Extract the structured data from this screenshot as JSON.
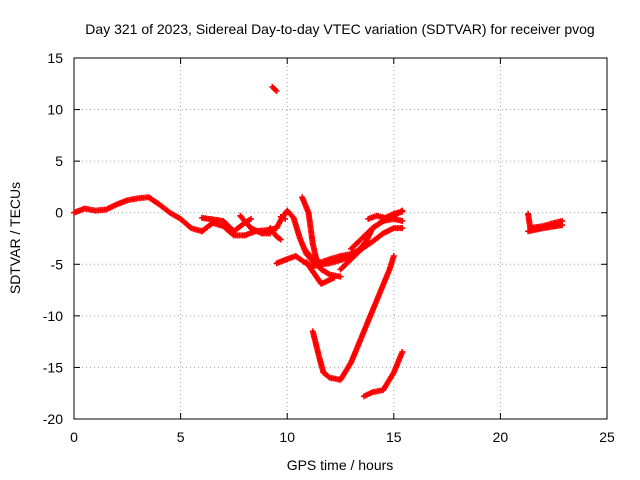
{
  "chart_data": {
    "type": "scatter",
    "title": "Day 321 of 2023, Sidereal Day-to-day VTEC variation (SDTVAR) for receiver pvog",
    "xlabel": "GPS time / hours",
    "ylabel": "SDTVAR / TECUs",
    "xlim": [
      0,
      25
    ],
    "ylim": [
      -20,
      15
    ],
    "xticks": [
      0,
      5,
      10,
      15,
      20,
      25
    ],
    "yticks": [
      -20,
      -15,
      -10,
      -5,
      0,
      5,
      10,
      15
    ],
    "grid": true,
    "legend": "none",
    "series_color": "#ff0000",
    "series": [
      {
        "name": "main-trace",
        "points": [
          [
            0.0,
            0.0
          ],
          [
            0.5,
            0.4
          ],
          [
            1.0,
            0.2
          ],
          [
            1.5,
            0.3
          ],
          [
            2.0,
            0.8
          ],
          [
            2.5,
            1.2
          ],
          [
            3.0,
            1.4
          ],
          [
            3.5,
            1.5
          ],
          [
            4.0,
            0.8
          ],
          [
            4.5,
            0.0
          ],
          [
            5.0,
            -0.6
          ],
          [
            5.5,
            -1.5
          ],
          [
            6.0,
            -1.8
          ]
        ]
      },
      {
        "name": "main-trace-b",
        "points": [
          [
            6.0,
            -1.8
          ],
          [
            6.5,
            -1.0
          ],
          [
            7.0,
            -1.3
          ],
          [
            7.5,
            -2.2
          ],
          [
            8.0,
            -2.2
          ],
          [
            8.5,
            -1.8
          ],
          [
            9.0,
            -1.7
          ],
          [
            9.5,
            -1.5
          ],
          [
            9.7,
            -0.7
          ],
          [
            10.0,
            0.2
          ],
          [
            10.3,
            -0.5
          ],
          [
            10.6,
            -2.5
          ],
          [
            10.9,
            -4.0
          ],
          [
            11.2,
            -4.7
          ],
          [
            11.6,
            -4.8
          ],
          [
            12.0,
            -4.5
          ],
          [
            12.5,
            -4.2
          ],
          [
            13.0,
            -4.0
          ],
          [
            13.5,
            -3.5
          ]
        ]
      },
      {
        "name": "trace-b",
        "points": [
          [
            6.0,
            -0.5
          ],
          [
            7.0,
            -0.8
          ],
          [
            7.5,
            -1.8
          ],
          [
            8.0,
            -1.0
          ],
          [
            8.3,
            -0.6
          ]
        ]
      },
      {
        "name": "trace-c",
        "points": [
          [
            7.8,
            -0.3
          ],
          [
            8.0,
            -0.8
          ],
          [
            8.3,
            -1.5
          ],
          [
            8.8,
            -2.0
          ],
          [
            9.2,
            -2.0
          ]
        ]
      },
      {
        "name": "trace-d",
        "points": [
          [
            9.7,
            -0.4
          ],
          [
            9.9,
            -0.6
          ]
        ]
      },
      {
        "name": "trace-e",
        "points": [
          [
            9.2,
            -1.5
          ],
          [
            9.5,
            -2.3
          ],
          [
            9.7,
            -2.6
          ]
        ]
      },
      {
        "name": "trace-f",
        "points": [
          [
            10.7,
            1.5
          ],
          [
            11.0,
            0.0
          ],
          [
            11.2,
            -3.0
          ],
          [
            11.4,
            -4.8
          ],
          [
            11.6,
            -5.5
          ]
        ]
      },
      {
        "name": "trace-g",
        "points": [
          [
            10.8,
            -3.5
          ],
          [
            11.2,
            -4.5
          ],
          [
            11.6,
            -5.5
          ],
          [
            12.0,
            -6.0
          ],
          [
            12.5,
            -6.2
          ]
        ]
      },
      {
        "name": "trace-h",
        "points": [
          [
            10.9,
            -4.8
          ],
          [
            11.3,
            -6.0
          ],
          [
            11.6,
            -6.9
          ],
          [
            11.9,
            -6.6
          ],
          [
            12.2,
            -6.3
          ]
        ]
      },
      {
        "name": "trace-i",
        "points": [
          [
            9.3,
            12.2
          ],
          [
            9.5,
            11.8
          ]
        ]
      },
      {
        "name": "trace-j",
        "points": [
          [
            9.5,
            -4.9
          ],
          [
            10.0,
            -4.5
          ],
          [
            10.4,
            -4.2
          ],
          [
            10.8,
            -4.8
          ],
          [
            11.2,
            -5.2
          ],
          [
            11.6,
            -5.0
          ],
          [
            12.0,
            -4.9
          ],
          [
            12.5,
            -4.6
          ],
          [
            13.0,
            -4.3
          ],
          [
            13.4,
            -3.5
          ],
          [
            13.7,
            -2.8
          ],
          [
            14.0,
            -1.5
          ],
          [
            14.5,
            -0.8
          ],
          [
            15.0,
            -0.3
          ],
          [
            15.4,
            0.2
          ]
        ]
      },
      {
        "name": "trace-k",
        "points": [
          [
            12.5,
            -5.5
          ],
          [
            13.0,
            -4.5
          ],
          [
            13.5,
            -3.5
          ],
          [
            14.0,
            -2.8
          ],
          [
            14.5,
            -2.0
          ],
          [
            15.0,
            -1.5
          ],
          [
            15.4,
            -1.5
          ]
        ]
      },
      {
        "name": "trace-l",
        "points": [
          [
            13.0,
            -3.5
          ],
          [
            13.5,
            -2.5
          ],
          [
            14.0,
            -1.5
          ],
          [
            14.5,
            -0.8
          ],
          [
            15.0,
            -0.6
          ],
          [
            15.4,
            -0.8
          ]
        ]
      },
      {
        "name": "trace-m",
        "points": [
          [
            13.8,
            -0.6
          ],
          [
            14.2,
            -0.3
          ],
          [
            14.6,
            -0.5
          ],
          [
            15.0,
            -0.1
          ],
          [
            15.4,
            0.1
          ]
        ]
      },
      {
        "name": "trace-n",
        "points": [
          [
            11.2,
            -11.5
          ],
          [
            11.5,
            -14.0
          ],
          [
            11.7,
            -15.5
          ],
          [
            12.0,
            -16.0
          ],
          [
            12.5,
            -16.2
          ],
          [
            13.0,
            -14.5
          ],
          [
            13.5,
            -12.0
          ],
          [
            14.0,
            -9.5
          ],
          [
            14.5,
            -7.0
          ],
          [
            14.8,
            -5.5
          ],
          [
            15.0,
            -4.2
          ]
        ]
      },
      {
        "name": "trace-o",
        "points": [
          [
            13.6,
            -17.8
          ],
          [
            14.0,
            -17.4
          ],
          [
            14.5,
            -17.2
          ],
          [
            15.0,
            -15.5
          ],
          [
            15.4,
            -13.5
          ]
        ]
      },
      {
        "name": "trace-p",
        "points": [
          [
            21.3,
            -0.1
          ],
          [
            21.4,
            -1.5
          ],
          [
            22.0,
            -1.3
          ],
          [
            22.5,
            -1.0
          ],
          [
            22.9,
            -0.8
          ]
        ]
      },
      {
        "name": "trace-q",
        "points": [
          [
            21.3,
            -1.8
          ],
          [
            22.0,
            -1.5
          ],
          [
            22.9,
            -1.2
          ]
        ]
      }
    ]
  }
}
